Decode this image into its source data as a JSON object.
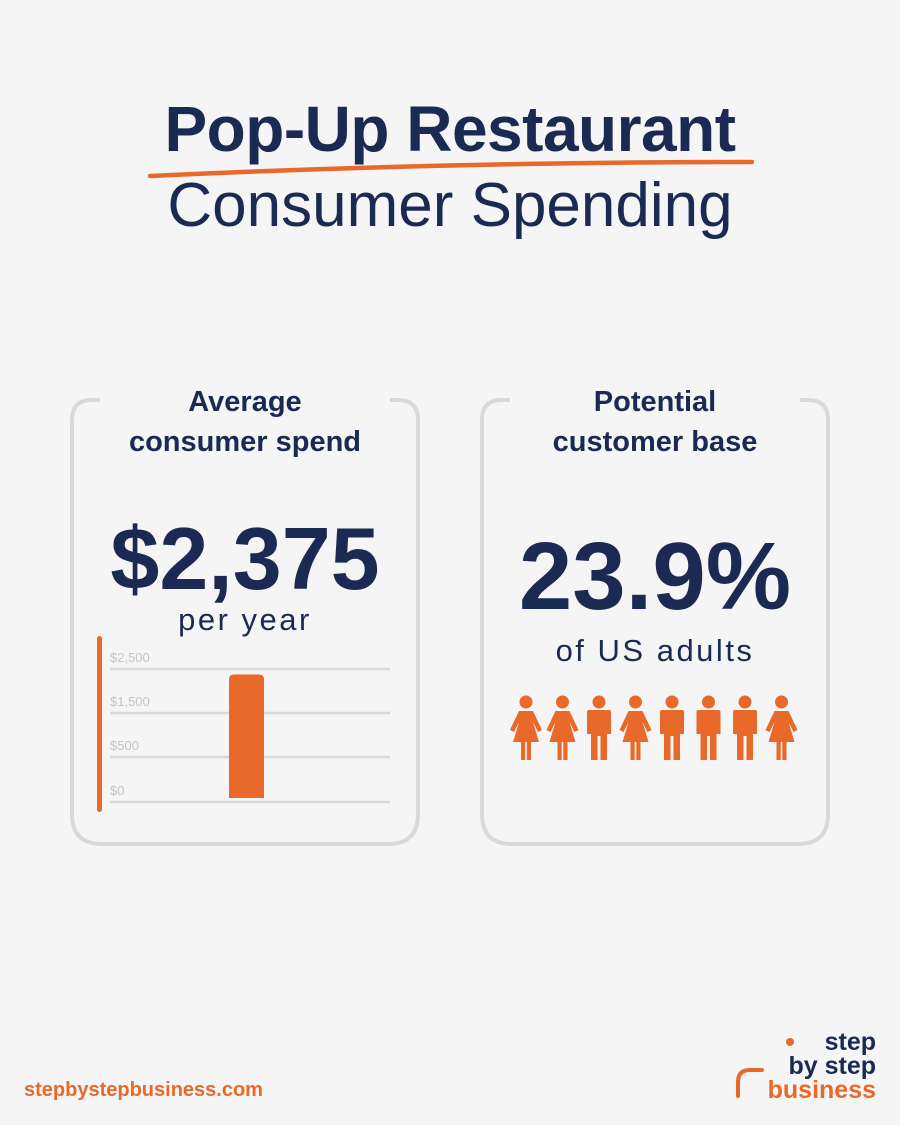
{
  "title": {
    "main": "Pop-Up Restaurant",
    "sub": "Consumer Spending"
  },
  "cards": {
    "spend": {
      "heading_line1": "Average",
      "heading_line2": "consumer spend",
      "value": "$2,375",
      "unit": "per year"
    },
    "base": {
      "heading_line1": "Potential",
      "heading_line2": "customer base",
      "value": "23.9%",
      "unit": "of US adults",
      "people_icons": [
        "female-icon",
        "female-icon",
        "male-icon",
        "female-icon",
        "male-icon",
        "male-icon",
        "male-icon",
        "female-icon"
      ]
    }
  },
  "chart_data": {
    "type": "bar",
    "categories": [
      ""
    ],
    "values": [
      2375
    ],
    "title": "",
    "xlabel": "",
    "ylabel": "",
    "ylim": [
      0,
      3000
    ],
    "y_tick_values": [
      0,
      500,
      1500,
      2500
    ],
    "y_tick_labels": [
      "$0",
      "$500",
      "$1,500",
      "$2,500"
    ],
    "grid": true,
    "bar_color": "#e8692a"
  },
  "footer": {
    "url": "stepbystepbusiness.com"
  },
  "logo": {
    "line1": "step",
    "line2": "by step",
    "line3": "business"
  },
  "colors": {
    "navy": "#1b2a52",
    "orange": "#e8692a",
    "card_border": "#d9d9d9",
    "background": "#f5f5f5"
  }
}
